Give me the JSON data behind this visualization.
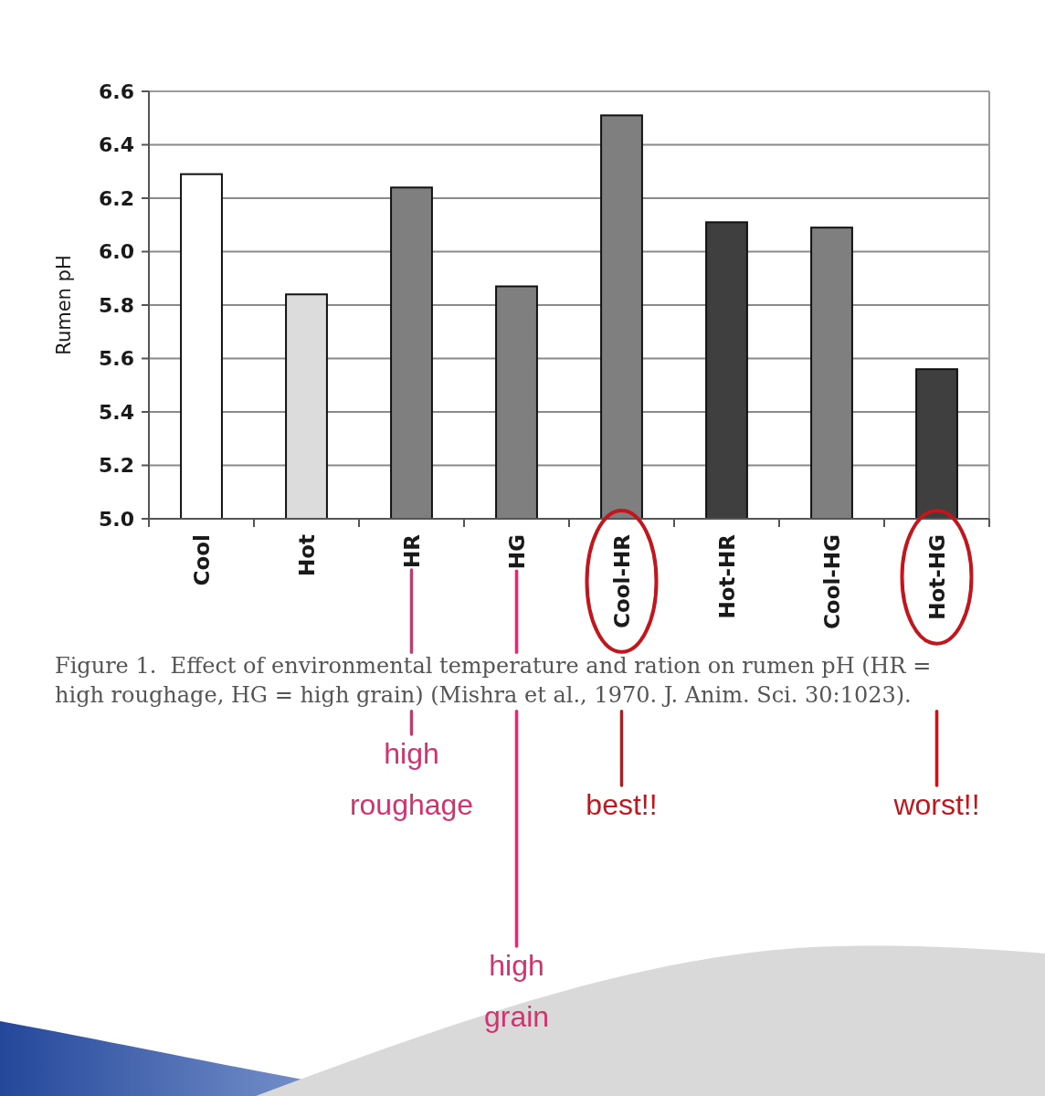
{
  "chart_data": {
    "type": "bar",
    "ylabel": "Rumen pH",
    "categories": [
      "Cool",
      "Hot",
      "HR",
      "HG",
      "Cool-HR",
      "Hot-HR",
      "Cool-HG",
      "Hot-HG"
    ],
    "values": [
      6.29,
      5.84,
      6.24,
      5.87,
      6.51,
      6.11,
      6.09,
      5.56
    ],
    "colors": [
      "#ffffff",
      "#dcdcdc",
      "#7f7f7f",
      "#7f7f7f",
      "#7f7f7f",
      "#3f3f3f",
      "#7f7f7f",
      "#3f3f3f"
    ],
    "ylim": [
      5.0,
      6.6
    ],
    "yticks": [
      {
        "value": 5,
        "label": "5.0"
      },
      5.2,
      5.4,
      5.6,
      5.8,
      {
        "value": 6,
        "label": "6.0"
      },
      6.2,
      6.4,
      6.6
    ],
    "grid": "y",
    "annotations": [
      "Figure 1.  Effect of environmental temperature and ration on rumen pH (HR = high roughage, HG = high grain) (Mishra et al., 1970. J. Anim. Sci. 30:1023).",
      {
        "text": "high roughage",
        "x": "HR"
      },
      {
        "text": "high grain",
        "x": "HG"
      },
      {
        "text": "best!!",
        "x": "Cool-HR"
      },
      {
        "text": "worst!!",
        "x": "Hot-HG"
      }
    ]
  }
}
